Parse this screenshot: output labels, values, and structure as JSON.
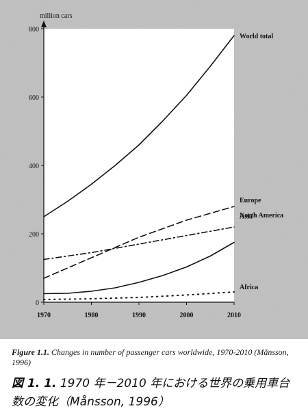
{
  "chart_data": {
    "type": "line",
    "ylabel": "million cars",
    "xlim": [
      1970,
      2010
    ],
    "ylim": [
      0,
      800
    ],
    "x_ticks": [
      1970,
      1980,
      1990,
      2000,
      2010
    ],
    "y_ticks": [
      0,
      200,
      400,
      600,
      800
    ],
    "grid": false,
    "series": [
      {
        "name": "World total",
        "style": "solid",
        "x": [
          1970,
          1975,
          1980,
          1985,
          1990,
          1995,
          2000,
          2005,
          2010
        ],
        "y": [
          250,
          295,
          345,
          400,
          460,
          530,
          605,
          690,
          780
        ]
      },
      {
        "name": "Europe",
        "style": "dashed",
        "x": [
          1970,
          1975,
          1980,
          1985,
          1990,
          1995,
          2000,
          2005,
          2010
        ],
        "y": [
          70,
          100,
          130,
          160,
          190,
          215,
          240,
          260,
          280
        ]
      },
      {
        "name": "North America",
        "style": "dashdot",
        "x": [
          1970,
          1980,
          1990,
          2000,
          2010
        ],
        "y": [
          125,
          145,
          170,
          195,
          220
        ]
      },
      {
        "name": "Asia",
        "style": "solid",
        "x": [
          1970,
          1975,
          1980,
          1985,
          1990,
          1995,
          2000,
          2005,
          2010
        ],
        "y": [
          25,
          26,
          32,
          42,
          58,
          78,
          103,
          135,
          175
        ]
      },
      {
        "name": "Africa",
        "style": "dotted",
        "x": [
          1970,
          1980,
          1990,
          2000,
          2010
        ],
        "y": [
          8,
          10,
          14,
          21,
          30
        ]
      }
    ]
  },
  "caption_en": {
    "label": "Figure 1.1.",
    "text": "Changes in number of passenger cars worldwide, 1970-2010 (Månsson, 1996)"
  },
  "caption_jp": {
    "label": "図 1. 1.",
    "text": "1970 年－2010 年における世界の乗用車台数の変化（Månsson, 1996）"
  },
  "colors": {
    "background": "#c4c4c4",
    "plot_area": "#ffffff",
    "ink": "#111111"
  }
}
